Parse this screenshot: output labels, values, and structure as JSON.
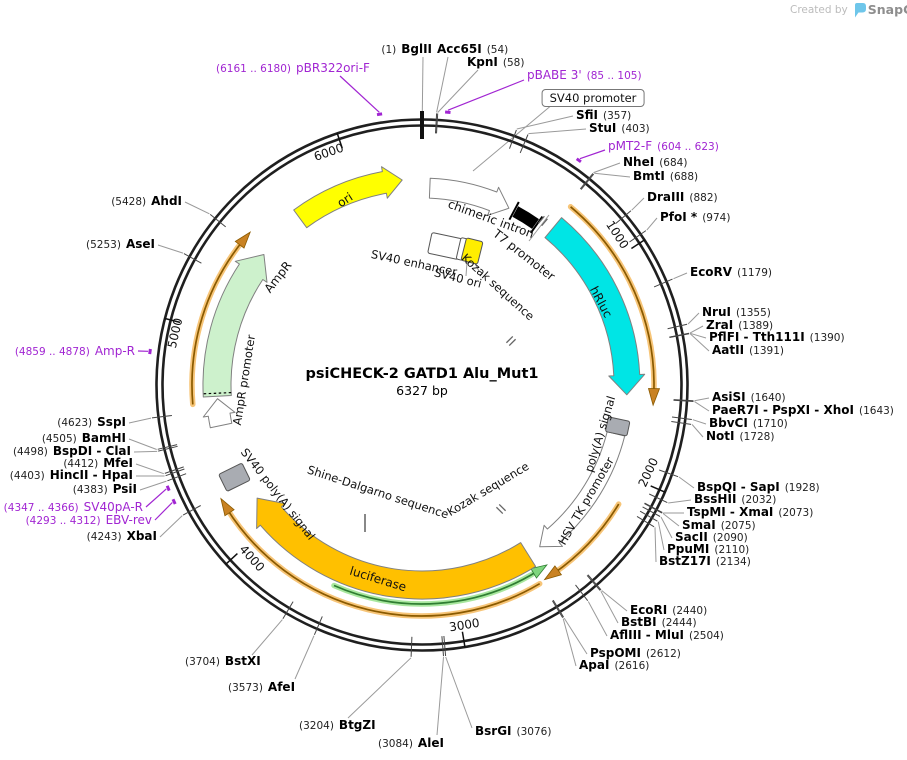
{
  "watermark": {
    "created_by": "Created by",
    "brand": "SnapGene"
  },
  "plasmid": {
    "name": "psiCHECK-2 GATD1 Alu_Mut1",
    "size": "6327 bp"
  },
  "scale_ticks": [
    "1000",
    "2000",
    "3000",
    "4000",
    "5000",
    "6000"
  ],
  "features": [
    "ori",
    "AmpR",
    "AmpR promoter",
    "chimeric intron",
    "T7 promoter",
    "SV40 enhancer",
    "SV40 ori",
    "Kozak sequence",
    "hRluc",
    "poly(A) signal",
    "HSV TK promoter",
    "Kozak sequence",
    "Shine-Dalgarno sequence",
    "luciferase",
    "SV40 poly(A) signal",
    "SV40 promoter"
  ],
  "enzyme_sites": [
    {
      "name": "BglII",
      "pos": "(1)"
    },
    {
      "name": "Acc65I",
      "pos": "(54)"
    },
    {
      "name": "KpnI",
      "pos": "(58)"
    },
    {
      "name": "SfiI",
      "pos": "(357)"
    },
    {
      "name": "StuI",
      "pos": "(403)"
    },
    {
      "name": "NheI",
      "pos": "(684)"
    },
    {
      "name": "BmtI",
      "pos": "(688)"
    },
    {
      "name": "DraIII",
      "pos": "(882)"
    },
    {
      "name": "PfoI *",
      "pos": "(974)"
    },
    {
      "name": "EcoRV",
      "pos": "(1179)"
    },
    {
      "name": "NruI",
      "pos": "(1355)"
    },
    {
      "name": "ZraI",
      "pos": "(1389)"
    },
    {
      "name": "PflFI - Tth111I",
      "pos": "(1390)"
    },
    {
      "name": "AatII",
      "pos": "(1391)"
    },
    {
      "name": "AsiSI",
      "pos": "(1640)"
    },
    {
      "name": "PaeR7I - PspXI - XhoI",
      "pos": "(1643)"
    },
    {
      "name": "BbvCI",
      "pos": "(1710)"
    },
    {
      "name": "NotI",
      "pos": "(1728)"
    },
    {
      "name": "BspQI - SapI",
      "pos": "(1928)"
    },
    {
      "name": "BssHII",
      "pos": "(2032)"
    },
    {
      "name": "TspMI - XmaI",
      "pos": "(2073)"
    },
    {
      "name": "SmaI",
      "pos": "(2075)"
    },
    {
      "name": "SacII",
      "pos": "(2090)"
    },
    {
      "name": "PpuMI",
      "pos": "(2110)"
    },
    {
      "name": "BstZ17I",
      "pos": "(2134)"
    },
    {
      "name": "EcoRI",
      "pos": "(2440)"
    },
    {
      "name": "BstBI",
      "pos": "(2444)"
    },
    {
      "name": "AflIII - MluI",
      "pos": "(2504)"
    },
    {
      "name": "PspOMI",
      "pos": "(2612)"
    },
    {
      "name": "ApaI",
      "pos": "(2616)"
    },
    {
      "name": "BsrGI",
      "pos": "(3076)"
    },
    {
      "name": "AleI",
      "pos": "(3084)"
    },
    {
      "name": "BtgZI",
      "pos": "(3204)"
    },
    {
      "name": "AfeI",
      "pos": "(3573)"
    },
    {
      "name": "BstXI",
      "pos": "(3704)"
    },
    {
      "name": "XbaI",
      "pos": "(4243)"
    },
    {
      "name": "PsiI",
      "pos": "(4383)"
    },
    {
      "name": "HincII - HpaI",
      "pos": "(4403)"
    },
    {
      "name": "MfeI",
      "pos": "(4412)"
    },
    {
      "name": "BspDI - ClaI",
      "pos": "(4498)"
    },
    {
      "name": "BamHI",
      "pos": "(4505)"
    },
    {
      "name": "SspI",
      "pos": "(4623)"
    },
    {
      "name": "AseI",
      "pos": "(5253)"
    },
    {
      "name": "AhdI",
      "pos": "(5428)"
    }
  ],
  "primers": [
    {
      "name": "pBR322ori-F",
      "range": "(6161 .. 6180)"
    },
    {
      "name": "pBABE 3'",
      "range": "(85 .. 105)"
    },
    {
      "name": "pMT2-F",
      "range": "(604 .. 623)"
    },
    {
      "name": "EBV-rev",
      "range": "(4293 .. 4312)"
    },
    {
      "name": "SV40pA-R",
      "range": "(4347 .. 4366)"
    },
    {
      "name": "Amp-R",
      "range": "(4859 .. 4878)"
    }
  ],
  "colors": {
    "ori": "#FFFF00",
    "ampr": "#CDF1CC",
    "hrluc": "#00E5E5",
    "luciferase": "#FFC000",
    "kozak_box": "#FFED00",
    "primer": "#A125D2",
    "backbone": "#1f1f1f",
    "transcript_arc": "#8a5a00",
    "reverse_arc": "#2f7d32",
    "polya_box": "#A9ACB2"
  }
}
